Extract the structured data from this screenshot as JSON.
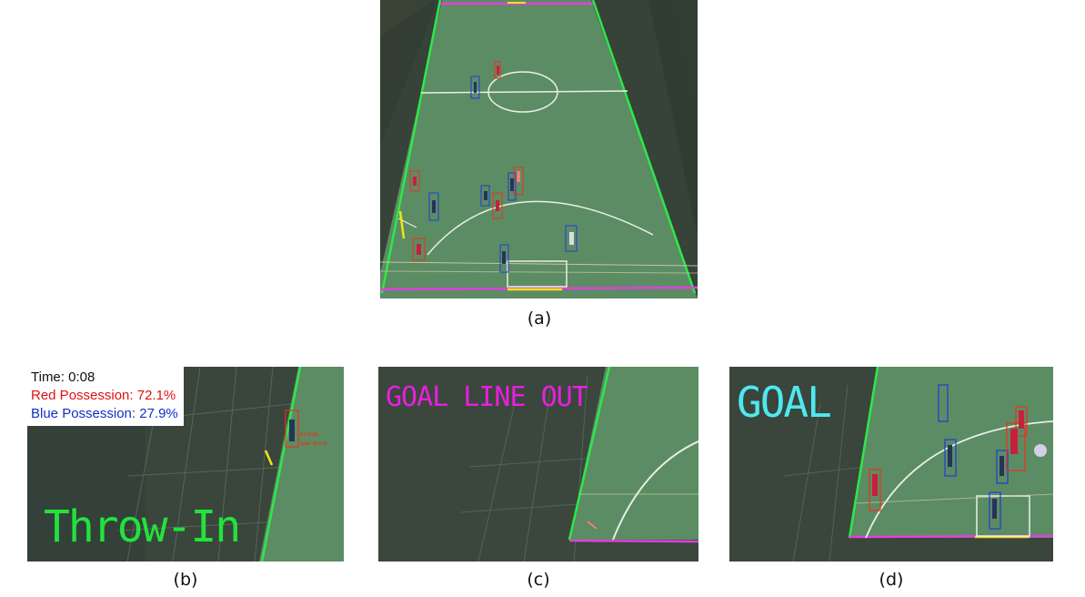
{
  "captions": {
    "a": "(a)",
    "b": "(b)",
    "c": "(c)",
    "d": "(d)"
  },
  "panel_b": {
    "time_text": "Time: 0:08",
    "red_possession": "Red Possession: 72.1%",
    "blue_possession": "Blue Possession: 27.9%",
    "event": "Throw-In",
    "event_color": "#22e33a"
  },
  "panel_c": {
    "event": "GOAL LINE OUT",
    "event_color": "#e81fe0"
  },
  "panel_d": {
    "event": "GOAL",
    "event_color": "#4fe8f0"
  },
  "colors": {
    "pitch": "#5a8a62",
    "sideline": "#2ee84a",
    "goal_line": "#e040e0",
    "team_red": "#e8321e",
    "team_blue": "#1e3cd8",
    "chalk": "#e8efe8",
    "hud_red": "#e01010",
    "hud_blue": "#1030c8"
  }
}
